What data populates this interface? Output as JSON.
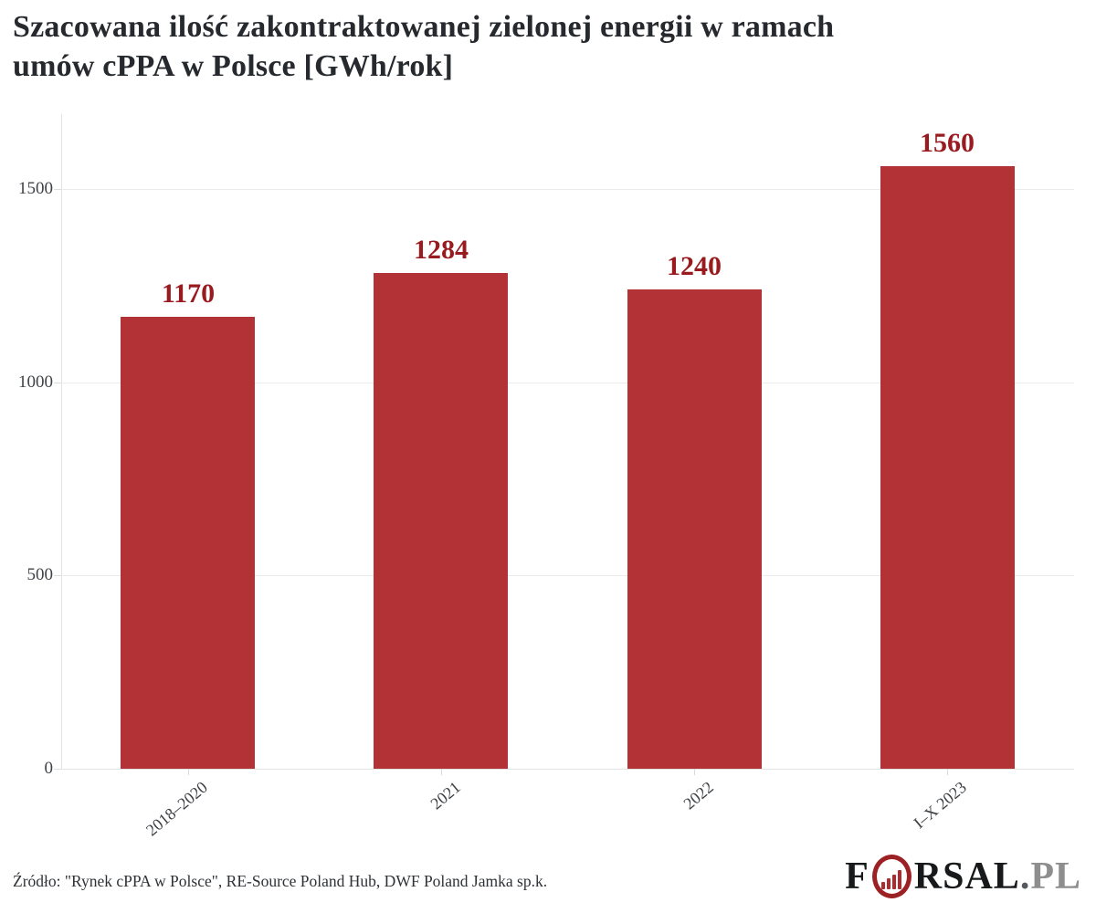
{
  "header": {
    "title_lines": [
      "Szacowana ilość zakontraktowanej zielonej energii w ramach",
      "umów cPPA w Polsce [GWh/rok]"
    ]
  },
  "chart_data": {
    "type": "bar",
    "title": "Szacowana ilość zakontraktowanej zielonej energii w ramach umów cPPA w Polsce [GWh/rok]",
    "categories": [
      "2018–2020",
      "2021",
      "2022",
      "I–X 2023"
    ],
    "values": [
      1170,
      1284,
      1240,
      1560
    ],
    "y_ticks": [
      0,
      500,
      1000,
      1500
    ],
    "ylim": [
      0,
      1695
    ],
    "grid": "horizontal",
    "legend": "none",
    "bar_color": "#b23236",
    "value_label_color": "#991b1f",
    "xlabel": "",
    "ylabel": ""
  },
  "footer": {
    "source": "Źródło: \"Rynek cPPA w Polsce\", RE-Source Poland Hub, DWF Poland Jamka sp.k.",
    "logo": {
      "prefix": "F",
      "middle": "RSAL",
      "dot": ".",
      "suffix": "PL",
      "icon": "bar-chart-ring-icon",
      "ring_color": "#9c2125",
      "mini_bar_color": "#ad2a2e",
      "text_color": "#17191b",
      "suffix_color": "#8e8e8e"
    }
  }
}
